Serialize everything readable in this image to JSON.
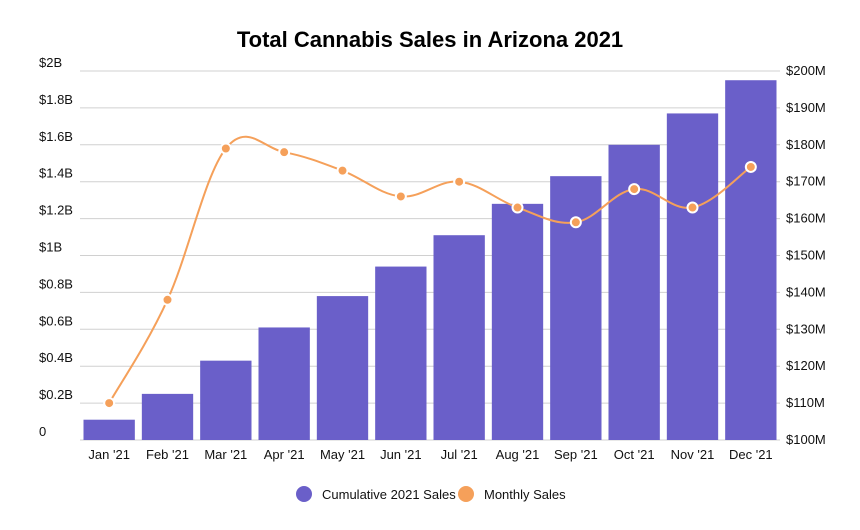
{
  "chart_data": {
    "type": "bar",
    "title": "Total Cannabis Sales in Arizona 2021",
    "categories": [
      "Jan '21",
      "Feb '21",
      "Mar '21",
      "Apr '21",
      "May '21",
      "Jun '21",
      "Jul '21",
      "Aug '21",
      "Sep '21",
      "Oct '21",
      "Nov '21",
      "Dec '21"
    ],
    "series": [
      {
        "name": "Cumulative 2021 Sales",
        "type": "bar",
        "axis": "left",
        "color": "#6a5fc9",
        "values": [
          0.11,
          0.25,
          0.43,
          0.61,
          0.78,
          0.94,
          1.11,
          1.28,
          1.43,
          1.6,
          1.77,
          1.95
        ]
      },
      {
        "name": "Monthly Sales",
        "type": "line",
        "axis": "right",
        "color": "#f5a05a",
        "values": [
          110,
          138,
          179,
          178,
          173,
          166,
          170,
          163,
          159,
          168,
          163,
          174
        ]
      }
    ],
    "y_left": {
      "lim": [
        0,
        2
      ],
      "ticks": [
        0,
        0.2,
        0.4,
        0.6,
        0.8,
        1,
        1.2,
        1.4,
        1.6,
        1.8,
        2
      ],
      "tick_labels": [
        "0",
        "$0.2B",
        "$0.4B",
        "$0.6B",
        "$0.8B",
        "$1B",
        "$1.2B",
        "$1.4B",
        "$1.6B",
        "$1.8B",
        "$2B"
      ]
    },
    "y_right": {
      "lim": [
        100,
        200
      ],
      "ticks": [
        100,
        110,
        120,
        130,
        140,
        150,
        160,
        170,
        180,
        190,
        200
      ],
      "tick_labels": [
        "$100M",
        "$110M",
        "$120M",
        "$130M",
        "$140M",
        "$150M",
        "$160M",
        "$170M",
        "$180M",
        "$190M",
        "$200M"
      ]
    },
    "grid": true,
    "legend_position": "bottom"
  }
}
